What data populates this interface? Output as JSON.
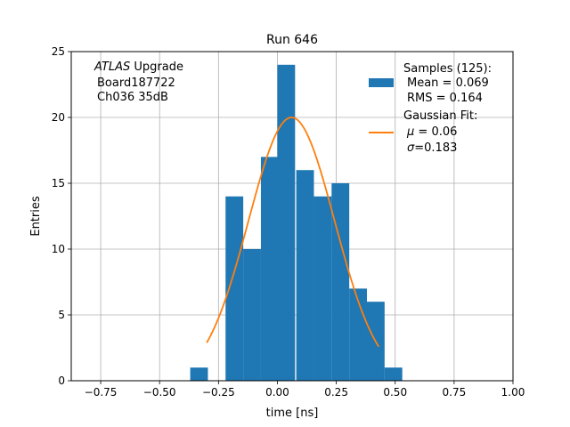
{
  "chart_data": {
    "type": "bar",
    "title": "Run 646",
    "xlabel": "time [ns]",
    "ylabel": "Entries",
    "xlim": [
      -0.875,
      1.0
    ],
    "ylim": [
      0,
      25
    ],
    "grid": true,
    "x_ticks": [
      -0.75,
      -0.5,
      -0.25,
      0.0,
      0.25,
      0.5,
      0.75,
      1.0
    ],
    "x_tick_labels": [
      "−0.75",
      "−0.50",
      "−0.25",
      "0.00",
      "0.25",
      "0.50",
      "0.75",
      "1.00"
    ],
    "y_ticks": [
      0,
      5,
      10,
      15,
      20,
      25
    ],
    "y_tick_labels": [
      "0",
      "5",
      "10",
      "15",
      "20",
      "25"
    ],
    "bin_width": 0.075,
    "bin_edges": [
      -0.37,
      -0.295,
      -0.22,
      -0.145,
      -0.07,
      -0.0,
      0.08,
      0.155,
      0.23,
      0.305,
      0.38,
      0.455
    ],
    "histogram_counts": [
      1,
      0,
      14,
      10,
      17,
      24,
      16,
      14,
      15,
      7,
      6,
      1
    ],
    "fit_curve": {
      "mu": 0.06,
      "sigma": 0.183,
      "amplitude": 20,
      "x_range": [
        -0.3,
        0.43
      ]
    },
    "annotation": {
      "line1_italic": "ATLAS",
      "line1_rest": " Upgrade",
      "line2": "Board187722",
      "line3": "Ch036 35dB"
    },
    "legend": {
      "placement": "top-right",
      "samples": {
        "title": "Samples (125):",
        "mean": "Mean = 0.069",
        "rms": "RMS = 0.164"
      },
      "fit": {
        "title": "Gaussian Fit:",
        "mu_symbol": "μ",
        "mu_value": " = 0.06",
        "sigma_symbol": "σ",
        "sigma_value": "=0.183"
      }
    },
    "colors": {
      "bars": "#1f77b4",
      "fit": "#ff7f0e",
      "grid": "#b0b0b0"
    }
  }
}
